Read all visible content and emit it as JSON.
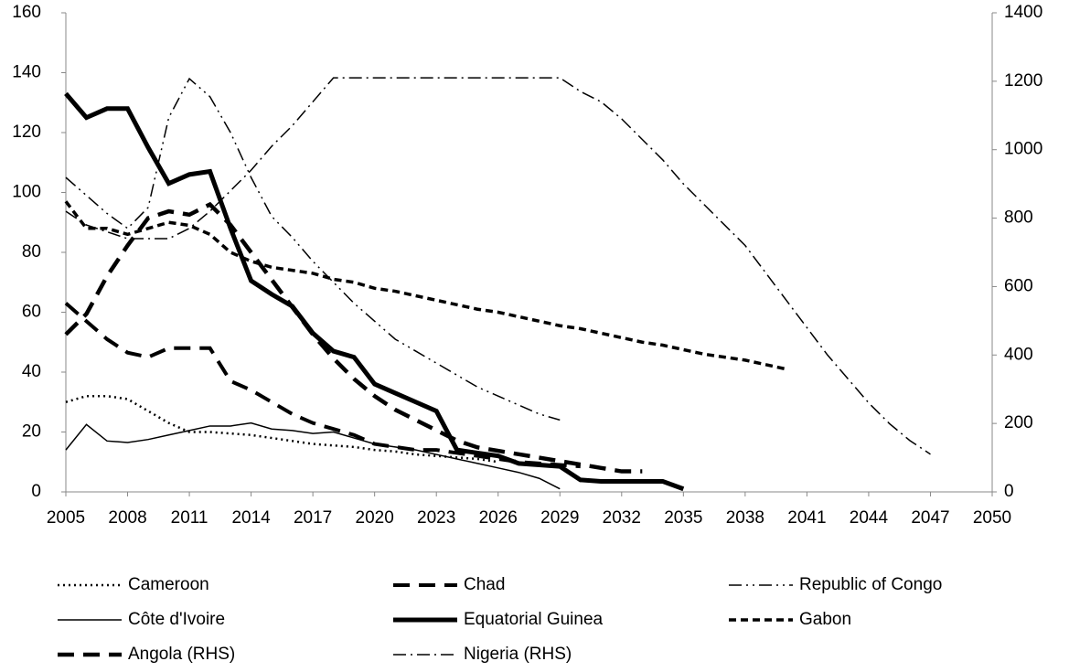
{
  "chart_data": {
    "type": "line",
    "x": [
      2005,
      2006,
      2007,
      2008,
      2009,
      2010,
      2011,
      2012,
      2013,
      2014,
      2015,
      2016,
      2017,
      2018,
      2019,
      2020,
      2021,
      2022,
      2023,
      2024,
      2025,
      2026,
      2027,
      2028,
      2029,
      2030,
      2031,
      2032,
      2033,
      2034,
      2035,
      2036,
      2037,
      2038,
      2039,
      2040,
      2041,
      2042,
      2043,
      2044,
      2045,
      2046,
      2047
    ],
    "xlim": [
      2005,
      2050
    ],
    "xticks": [
      2005,
      2008,
      2011,
      2014,
      2017,
      2020,
      2023,
      2026,
      2029,
      2032,
      2035,
      2038,
      2041,
      2044,
      2047,
      2050
    ],
    "ylim": [
      0,
      160
    ],
    "yticks": [
      0,
      20,
      40,
      60,
      80,
      100,
      120,
      140,
      160
    ],
    "y2lim": [
      0,
      1400
    ],
    "y2ticks": [
      0,
      200,
      400,
      600,
      800,
      1000,
      1200,
      1400
    ],
    "series": [
      {
        "name": "Cameroon",
        "color": "#000000",
        "dash": "2,4",
        "values": [
          30,
          32,
          32,
          31,
          27,
          23,
          20,
          20,
          19.5,
          19,
          18,
          17,
          16,
          15.5,
          15,
          14,
          13.5,
          12.5,
          12,
          11.5,
          11,
          10,
          null,
          null,
          null,
          null,
          null,
          null,
          null,
          null,
          null,
          null,
          null,
          null,
          null,
          null,
          null,
          null,
          null,
          null,
          null,
          null,
          null
        ]
      },
      {
        "name": "Chad",
        "color": "#000000",
        "dash": "18,10",
        "values": [
          63,
          57,
          51,
          46.5,
          45,
          48,
          48,
          48,
          37,
          34,
          30,
          26,
          23,
          21,
          19,
          16,
          15,
          14,
          14,
          13,
          12,
          11,
          10,
          9.5,
          9,
          8.5,
          null,
          null,
          null,
          null,
          null,
          null,
          null,
          null,
          null,
          null,
          null,
          null,
          null,
          null,
          null,
          null,
          null
        ]
      },
      {
        "name": "Republic of Congo",
        "color": "#000000",
        "dash": "14,5,2,5,2,5",
        "values": [
          105,
          99,
          93,
          88,
          95,
          125,
          138,
          132,
          120,
          105,
          92,
          85,
          77,
          70,
          63,
          57,
          51,
          47,
          43,
          39,
          35,
          32,
          29,
          26,
          24,
          null,
          null,
          null,
          null,
          null,
          null,
          null,
          null,
          null,
          null,
          null,
          null,
          null,
          null,
          null,
          null,
          null,
          null
        ]
      },
      {
        "name": "Côte d'Ivoire",
        "color": "#000000",
        "dash": "none",
        "values": [
          14,
          22.5,
          17,
          16.5,
          17.5,
          19,
          20.5,
          22,
          22,
          23,
          21,
          20.5,
          19.5,
          20,
          18,
          16,
          15,
          14,
          12.5,
          11,
          9.5,
          8,
          6.5,
          4.5,
          1,
          null,
          null,
          null,
          null,
          null,
          null,
          null,
          null,
          null,
          null,
          null,
          null,
          null,
          null,
          null,
          null,
          null,
          null
        ]
      },
      {
        "name": "Equatorial Guinea",
        "color": "#000000",
        "dash": "none",
        "values": [
          133,
          125,
          128,
          128,
          115,
          103,
          106,
          107,
          88,
          70.5,
          66,
          62,
          53,
          47,
          45,
          36,
          33,
          30,
          27,
          14,
          13,
          12,
          9.5,
          9,
          8.5,
          4,
          3.5,
          3.5,
          3.5,
          3.5,
          1,
          null,
          null,
          null,
          null,
          null,
          null,
          null,
          null,
          null,
          null,
          null,
          null
        ]
      },
      {
        "name": "Gabon",
        "color": "#000000",
        "dash": "8,5",
        "values": [
          97,
          88,
          88,
          86,
          88,
          90,
          89,
          86,
          80,
          77,
          75,
          74,
          73,
          71,
          70,
          68,
          67,
          65.5,
          64,
          62.5,
          61,
          60,
          58.5,
          57,
          55.5,
          54.5,
          53,
          51.5,
          50,
          49,
          47.5,
          46,
          45,
          44,
          42.5,
          41,
          null,
          null,
          null,
          null,
          null,
          null,
          null
        ]
      },
      {
        "name": "Angola (RHS)",
        "color": "#000000",
        "dash": "18,10",
        "axis": "y2",
        "values": [
          460,
          520,
          630,
          720,
          800,
          820,
          810,
          840,
          780,
          700,
          620,
          540,
          460,
          390,
          330,
          280,
          240,
          210,
          180,
          150,
          130,
          120,
          110,
          100,
          90,
          80,
          70,
          60,
          60,
          null,
          null,
          null,
          null,
          null,
          null,
          null,
          null,
          null,
          null,
          null,
          null,
          null,
          null
        ]
      },
      {
        "name": "Nigeria (RHS)",
        "color": "#000000",
        "dash": "14,5,2,5",
        "axis": "y2",
        "values": [
          820,
          780,
          760,
          740,
          740,
          740,
          770,
          820,
          880,
          940,
          1010,
          1070,
          1140,
          1210,
          1210,
          1210,
          1210,
          1210,
          1210,
          1210,
          1210,
          1210,
          1210,
          1210,
          1210,
          1170,
          1140,
          1090,
          1030,
          970,
          900,
          840,
          780,
          720,
          640,
          560,
          480,
          400,
          330,
          260,
          200,
          150,
          110
        ]
      }
    ]
  }
}
